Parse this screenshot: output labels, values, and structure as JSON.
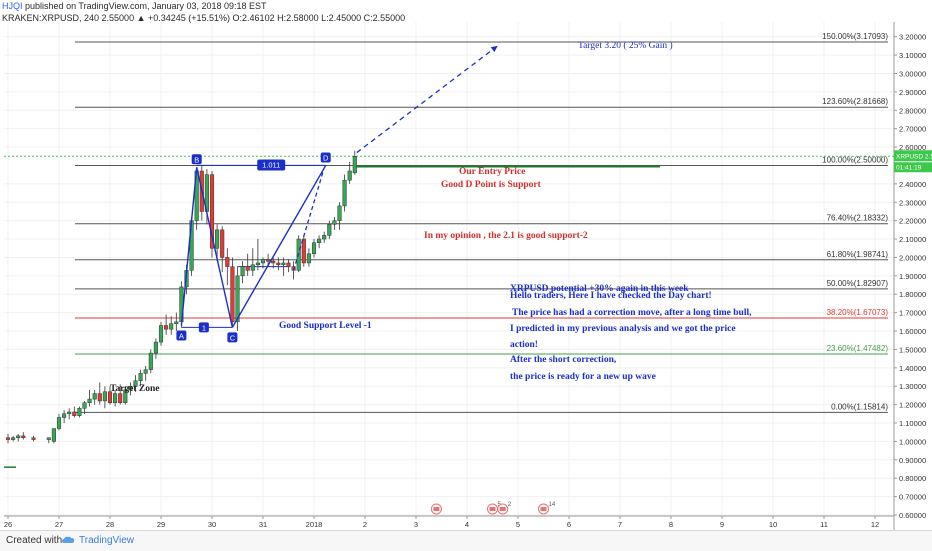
{
  "header": {
    "author": "HJQI",
    "published": "published on TradingView.com, January 03, 2018 09:18 EST",
    "ohlc": "KRAKEN:XRPUSD, 240  2.55000  ▲ +0.34245 (+15.51%)  O:2.46102  H:2.58000  L:2.45000  C:2.55000"
  },
  "footer": {
    "created_with": "Created with",
    "brand": "TradingView"
  },
  "colors": {
    "up": "#34a853",
    "down": "#e53935",
    "pattern": "#1a2fc9",
    "annotation": "#1a2fc9",
    "red_text": "#d32f2f",
    "grid": "#f0f0f0",
    "fib_line": "#555555",
    "fib_382": "#e53935",
    "fib_236": "#43a047",
    "price_tag": "#3cc84a"
  },
  "chart_data": {
    "type": "candlestick",
    "symbol": "XRPUSD",
    "timeframe": "240",
    "ylim": [
      0.6,
      3.22
    ],
    "xlim": [
      0,
      170
    ],
    "x_ticks": [
      {
        "x": 0,
        "label": "26"
      },
      {
        "x": 10,
        "label": "27"
      },
      {
        "x": 20,
        "label": "28"
      },
      {
        "x": 30,
        "label": "29"
      },
      {
        "x": 40,
        "label": "30"
      },
      {
        "x": 50,
        "label": "31"
      },
      {
        "x": 60,
        "label": "2018"
      },
      {
        "x": 70,
        "label": "2"
      },
      {
        "x": 80,
        "label": "3"
      },
      {
        "x": 90,
        "label": "4"
      },
      {
        "x": 100,
        "label": "5"
      },
      {
        "x": 110,
        "label": "6"
      },
      {
        "x": 120,
        "label": "7"
      },
      {
        "x": 130,
        "label": "8"
      },
      {
        "x": 140,
        "label": "9"
      },
      {
        "x": 150,
        "label": "10"
      },
      {
        "x": 160,
        "label": "11"
      },
      {
        "x": 170,
        "label": "12"
      }
    ],
    "y_ticks": [
      {
        "v": 3.2,
        "label": "3.20000"
      },
      {
        "v": 3.1,
        "label": "3.10000"
      },
      {
        "v": 3.0,
        "label": "3.00000"
      },
      {
        "v": 2.9,
        "label": "2.90000"
      },
      {
        "v": 2.8,
        "label": "2.80000"
      },
      {
        "v": 2.7,
        "label": "2.70000"
      },
      {
        "v": 2.6,
        "label": "2.60000"
      },
      {
        "v": 2.4,
        "label": "2.40000"
      },
      {
        "v": 2.3,
        "label": "2.30000"
      },
      {
        "v": 2.2,
        "label": "2.20000"
      },
      {
        "v": 2.1,
        "label": "2.10000"
      },
      {
        "v": 2.0,
        "label": "2.00000"
      },
      {
        "v": 1.9,
        "label": "1.90000"
      },
      {
        "v": 1.8,
        "label": "1.80000"
      },
      {
        "v": 1.7,
        "label": "1.70000"
      },
      {
        "v": 1.6,
        "label": "1.60000"
      },
      {
        "v": 1.5,
        "label": "1.50000"
      },
      {
        "v": 1.4,
        "label": "1.40000"
      },
      {
        "v": 1.3,
        "label": "1.30000"
      },
      {
        "v": 1.2,
        "label": "1.20000"
      },
      {
        "v": 1.1,
        "label": "1.10000"
      },
      {
        "v": 1.0,
        "label": "1.00000"
      },
      {
        "v": 0.9,
        "label": "0.90000"
      },
      {
        "v": 0.8,
        "label": "0.80000"
      },
      {
        "v": 0.7,
        "label": "0.70000"
      },
      {
        "v": 0.6,
        "label": "0.60000"
      }
    ],
    "price_tag": {
      "symbol": "XRPUSD",
      "value": 2.55,
      "label": "2.55000",
      "sub": "01:41:19"
    },
    "candles": [
      {
        "x": 0,
        "o": 1.02,
        "h": 1.04,
        "l": 0.99,
        "c": 1.01
      },
      {
        "x": 1,
        "o": 1.01,
        "h": 1.03,
        "l": 1.0,
        "c": 1.02
      },
      {
        "x": 2,
        "o": 1.02,
        "h": 1.04,
        "l": 1.0,
        "c": 1.03
      },
      {
        "x": 3,
        "o": 1.03,
        "h": 1.05,
        "l": 1.01,
        "c": 1.02
      },
      {
        "x": 5,
        "o": 1.02,
        "h": 1.03,
        "l": 1.0,
        "c": 1.01
      },
      {
        "x": 8,
        "o": 1.01,
        "h": 1.02,
        "l": 0.99,
        "c": 1.02
      },
      {
        "x": 9,
        "o": 1.0,
        "h": 1.07,
        "l": 0.99,
        "c": 1.07
      },
      {
        "x": 10,
        "o": 1.07,
        "h": 1.15,
        "l": 1.06,
        "c": 1.13
      },
      {
        "x": 11,
        "o": 1.13,
        "h": 1.17,
        "l": 1.1,
        "c": 1.15
      },
      {
        "x": 12,
        "o": 1.15,
        "h": 1.18,
        "l": 1.12,
        "c": 1.16
      },
      {
        "x": 13,
        "o": 1.16,
        "h": 1.19,
        "l": 1.13,
        "c": 1.14
      },
      {
        "x": 14,
        "o": 1.14,
        "h": 1.19,
        "l": 1.13,
        "c": 1.18
      },
      {
        "x": 15,
        "o": 1.18,
        "h": 1.22,
        "l": 1.15,
        "c": 1.21
      },
      {
        "x": 16,
        "o": 1.21,
        "h": 1.28,
        "l": 1.19,
        "c": 1.23
      },
      {
        "x": 17,
        "o": 1.23,
        "h": 1.28,
        "l": 1.2,
        "c": 1.26
      },
      {
        "x": 18,
        "o": 1.26,
        "h": 1.32,
        "l": 1.2,
        "c": 1.22
      },
      {
        "x": 19,
        "o": 1.22,
        "h": 1.3,
        "l": 1.18,
        "c": 1.27
      },
      {
        "x": 20,
        "o": 1.27,
        "h": 1.3,
        "l": 1.2,
        "c": 1.21
      },
      {
        "x": 21,
        "o": 1.21,
        "h": 1.28,
        "l": 1.19,
        "c": 1.26
      },
      {
        "x": 22,
        "o": 1.26,
        "h": 1.31,
        "l": 1.2,
        "c": 1.21
      },
      {
        "x": 23,
        "o": 1.21,
        "h": 1.3,
        "l": 1.2,
        "c": 1.28
      },
      {
        "x": 24,
        "o": 1.28,
        "h": 1.32,
        "l": 1.25,
        "c": 1.3
      },
      {
        "x": 25,
        "o": 1.3,
        "h": 1.36,
        "l": 1.27,
        "c": 1.33
      },
      {
        "x": 26,
        "o": 1.33,
        "h": 1.39,
        "l": 1.3,
        "c": 1.37
      },
      {
        "x": 27,
        "o": 1.37,
        "h": 1.41,
        "l": 1.33,
        "c": 1.39
      },
      {
        "x": 28,
        "o": 1.39,
        "h": 1.5,
        "l": 1.37,
        "c": 1.48
      },
      {
        "x": 29,
        "o": 1.48,
        "h": 1.56,
        "l": 1.45,
        "c": 1.54
      },
      {
        "x": 30,
        "o": 1.54,
        "h": 1.65,
        "l": 1.52,
        "c": 1.63
      },
      {
        "x": 31,
        "o": 1.63,
        "h": 1.69,
        "l": 1.58,
        "c": 1.61
      },
      {
        "x": 32,
        "o": 1.61,
        "h": 1.68,
        "l": 1.58,
        "c": 1.64
      },
      {
        "x": 33,
        "o": 1.64,
        "h": 1.7,
        "l": 1.6,
        "c": 1.65
      },
      {
        "x": 34,
        "o": 1.65,
        "h": 1.87,
        "l": 1.62,
        "c": 1.84
      },
      {
        "x": 35,
        "o": 1.84,
        "h": 1.96,
        "l": 1.8,
        "c": 1.93
      },
      {
        "x": 36,
        "o": 1.93,
        "h": 2.22,
        "l": 1.9,
        "c": 2.2
      },
      {
        "x": 37,
        "o": 2.2,
        "h": 2.49,
        "l": 2.15,
        "c": 2.47
      },
      {
        "x": 38,
        "o": 2.47,
        "h": 2.5,
        "l": 2.2,
        "c": 2.25
      },
      {
        "x": 39,
        "o": 2.25,
        "h": 2.48,
        "l": 2.18,
        "c": 2.45
      },
      {
        "x": 40,
        "o": 2.45,
        "h": 2.47,
        "l": 2.0,
        "c": 2.05
      },
      {
        "x": 41,
        "o": 2.05,
        "h": 2.18,
        "l": 1.98,
        "c": 2.15
      },
      {
        "x": 42,
        "o": 2.15,
        "h": 2.17,
        "l": 1.92,
        "c": 2.0
      },
      {
        "x": 43,
        "o": 2.0,
        "h": 2.05,
        "l": 1.85,
        "c": 1.95
      },
      {
        "x": 44,
        "o": 1.95,
        "h": 2.0,
        "l": 1.62,
        "c": 1.65
      },
      {
        "x": 45,
        "o": 1.65,
        "h": 1.95,
        "l": 1.6,
        "c": 1.9
      },
      {
        "x": 46,
        "o": 1.9,
        "h": 1.98,
        "l": 1.86,
        "c": 1.95
      },
      {
        "x": 47,
        "o": 1.95,
        "h": 2.02,
        "l": 1.9,
        "c": 1.93
      },
      {
        "x": 48,
        "o": 1.93,
        "h": 2.05,
        "l": 1.9,
        "c": 1.96
      },
      {
        "x": 49,
        "o": 1.96,
        "h": 2.1,
        "l": 1.93,
        "c": 1.97
      },
      {
        "x": 50,
        "o": 1.97,
        "h": 2.0,
        "l": 1.94,
        "c": 1.99
      },
      {
        "x": 51,
        "o": 1.99,
        "h": 2.02,
        "l": 1.95,
        "c": 1.98
      },
      {
        "x": 52,
        "o": 1.98,
        "h": 2.0,
        "l": 1.94,
        "c": 1.97
      },
      {
        "x": 53,
        "o": 1.97,
        "h": 2.0,
        "l": 1.93,
        "c": 1.96
      },
      {
        "x": 54,
        "o": 1.96,
        "h": 2.0,
        "l": 1.9,
        "c": 1.97
      },
      {
        "x": 55,
        "o": 1.97,
        "h": 1.99,
        "l": 1.92,
        "c": 1.95
      },
      {
        "x": 56,
        "o": 1.95,
        "h": 1.98,
        "l": 1.88,
        "c": 1.93
      },
      {
        "x": 57,
        "o": 1.93,
        "h": 2.12,
        "l": 1.92,
        "c": 2.1
      },
      {
        "x": 58,
        "o": 2.1,
        "h": 2.12,
        "l": 1.95,
        "c": 1.97
      },
      {
        "x": 59,
        "o": 1.97,
        "h": 2.05,
        "l": 1.95,
        "c": 2.02
      },
      {
        "x": 60,
        "o": 2.02,
        "h": 2.1,
        "l": 2.0,
        "c": 2.08
      },
      {
        "x": 61,
        "o": 2.08,
        "h": 2.12,
        "l": 2.05,
        "c": 2.1
      },
      {
        "x": 62,
        "o": 2.1,
        "h": 2.14,
        "l": 2.08,
        "c": 2.12
      },
      {
        "x": 63,
        "o": 2.12,
        "h": 2.2,
        "l": 2.1,
        "c": 2.18
      },
      {
        "x": 64,
        "o": 2.18,
        "h": 2.22,
        "l": 2.15,
        "c": 2.2
      },
      {
        "x": 65,
        "o": 2.2,
        "h": 2.3,
        "l": 2.15,
        "c": 2.28
      },
      {
        "x": 66,
        "o": 2.28,
        "h": 2.45,
        "l": 2.25,
        "c": 2.42
      },
      {
        "x": 67,
        "o": 2.42,
        "h": 2.52,
        "l": 2.4,
        "c": 2.47
      },
      {
        "x": 68,
        "o": 2.46,
        "h": 2.58,
        "l": 2.45,
        "c": 2.55
      }
    ],
    "fib_levels": [
      {
        "value": 3.17093,
        "label": "150.00%(3.17093)",
        "color": "#555555"
      },
      {
        "value": 2.81668,
        "label": "123.60%(2.81668)",
        "color": "#555555"
      },
      {
        "value": 2.5,
        "label": "100.00%(2.50000)",
        "color": "#555555"
      },
      {
        "value": 2.18332,
        "label": "76.40%(2.18332)",
        "color": "#555555"
      },
      {
        "value": 1.98741,
        "label": "61.80%(1.98741)",
        "color": "#555555"
      },
      {
        "value": 1.82907,
        "label": "50.00%(1.82907)",
        "color": "#555555"
      },
      {
        "value": 1.67073,
        "label": "38.20%(1.67073)",
        "color": "#e53935"
      },
      {
        "value": 1.47482,
        "label": "23.60%(1.47482)",
        "color": "#43a047"
      },
      {
        "value": 1.15814,
        "label": "0.00%(1.15814)",
        "color": "#555555"
      }
    ],
    "pattern_points": [
      {
        "label": "A",
        "x": 34,
        "y": 1.63
      },
      {
        "label": "B",
        "x": 37,
        "y": 2.49
      },
      {
        "label": "C",
        "x": 44,
        "y": 1.62
      },
      {
        "label": "D",
        "x": 62.3,
        "y": 2.5
      }
    ],
    "pattern_labels": {
      "ab_cd_ratio": "1.011",
      "ac_ratio": "1"
    },
    "target_point": {
      "x": 96,
      "y": 3.15
    },
    "annotations": {
      "target": "Target 3.20 ( 25% Gain )",
      "entry": "Our Entry Price",
      "d_support": "Good D Point is Support",
      "opinion": "In my opinion , the 2.1 is good support-2",
      "good_support": "Good Support Level -1",
      "target_zone": "Target Zone",
      "potential": "XRPUSD potential +30% again in this week",
      "hello": "Hello traders, Here I have checked the Day chart!",
      "correction": "The price has had a correction move, after a long time bull,",
      "predicted": "I predicted in my previous analysis and we got the price",
      "action": "action!",
      "after": "After the short correction,",
      "ready": "the price is ready for a new up wave"
    },
    "event_badges": [
      {
        "x": 84,
        "label": ""
      },
      {
        "x": 95,
        "label": "5"
      },
      {
        "x": 97,
        "label": "2"
      },
      {
        "x": 105,
        "label": "14"
      }
    ]
  }
}
